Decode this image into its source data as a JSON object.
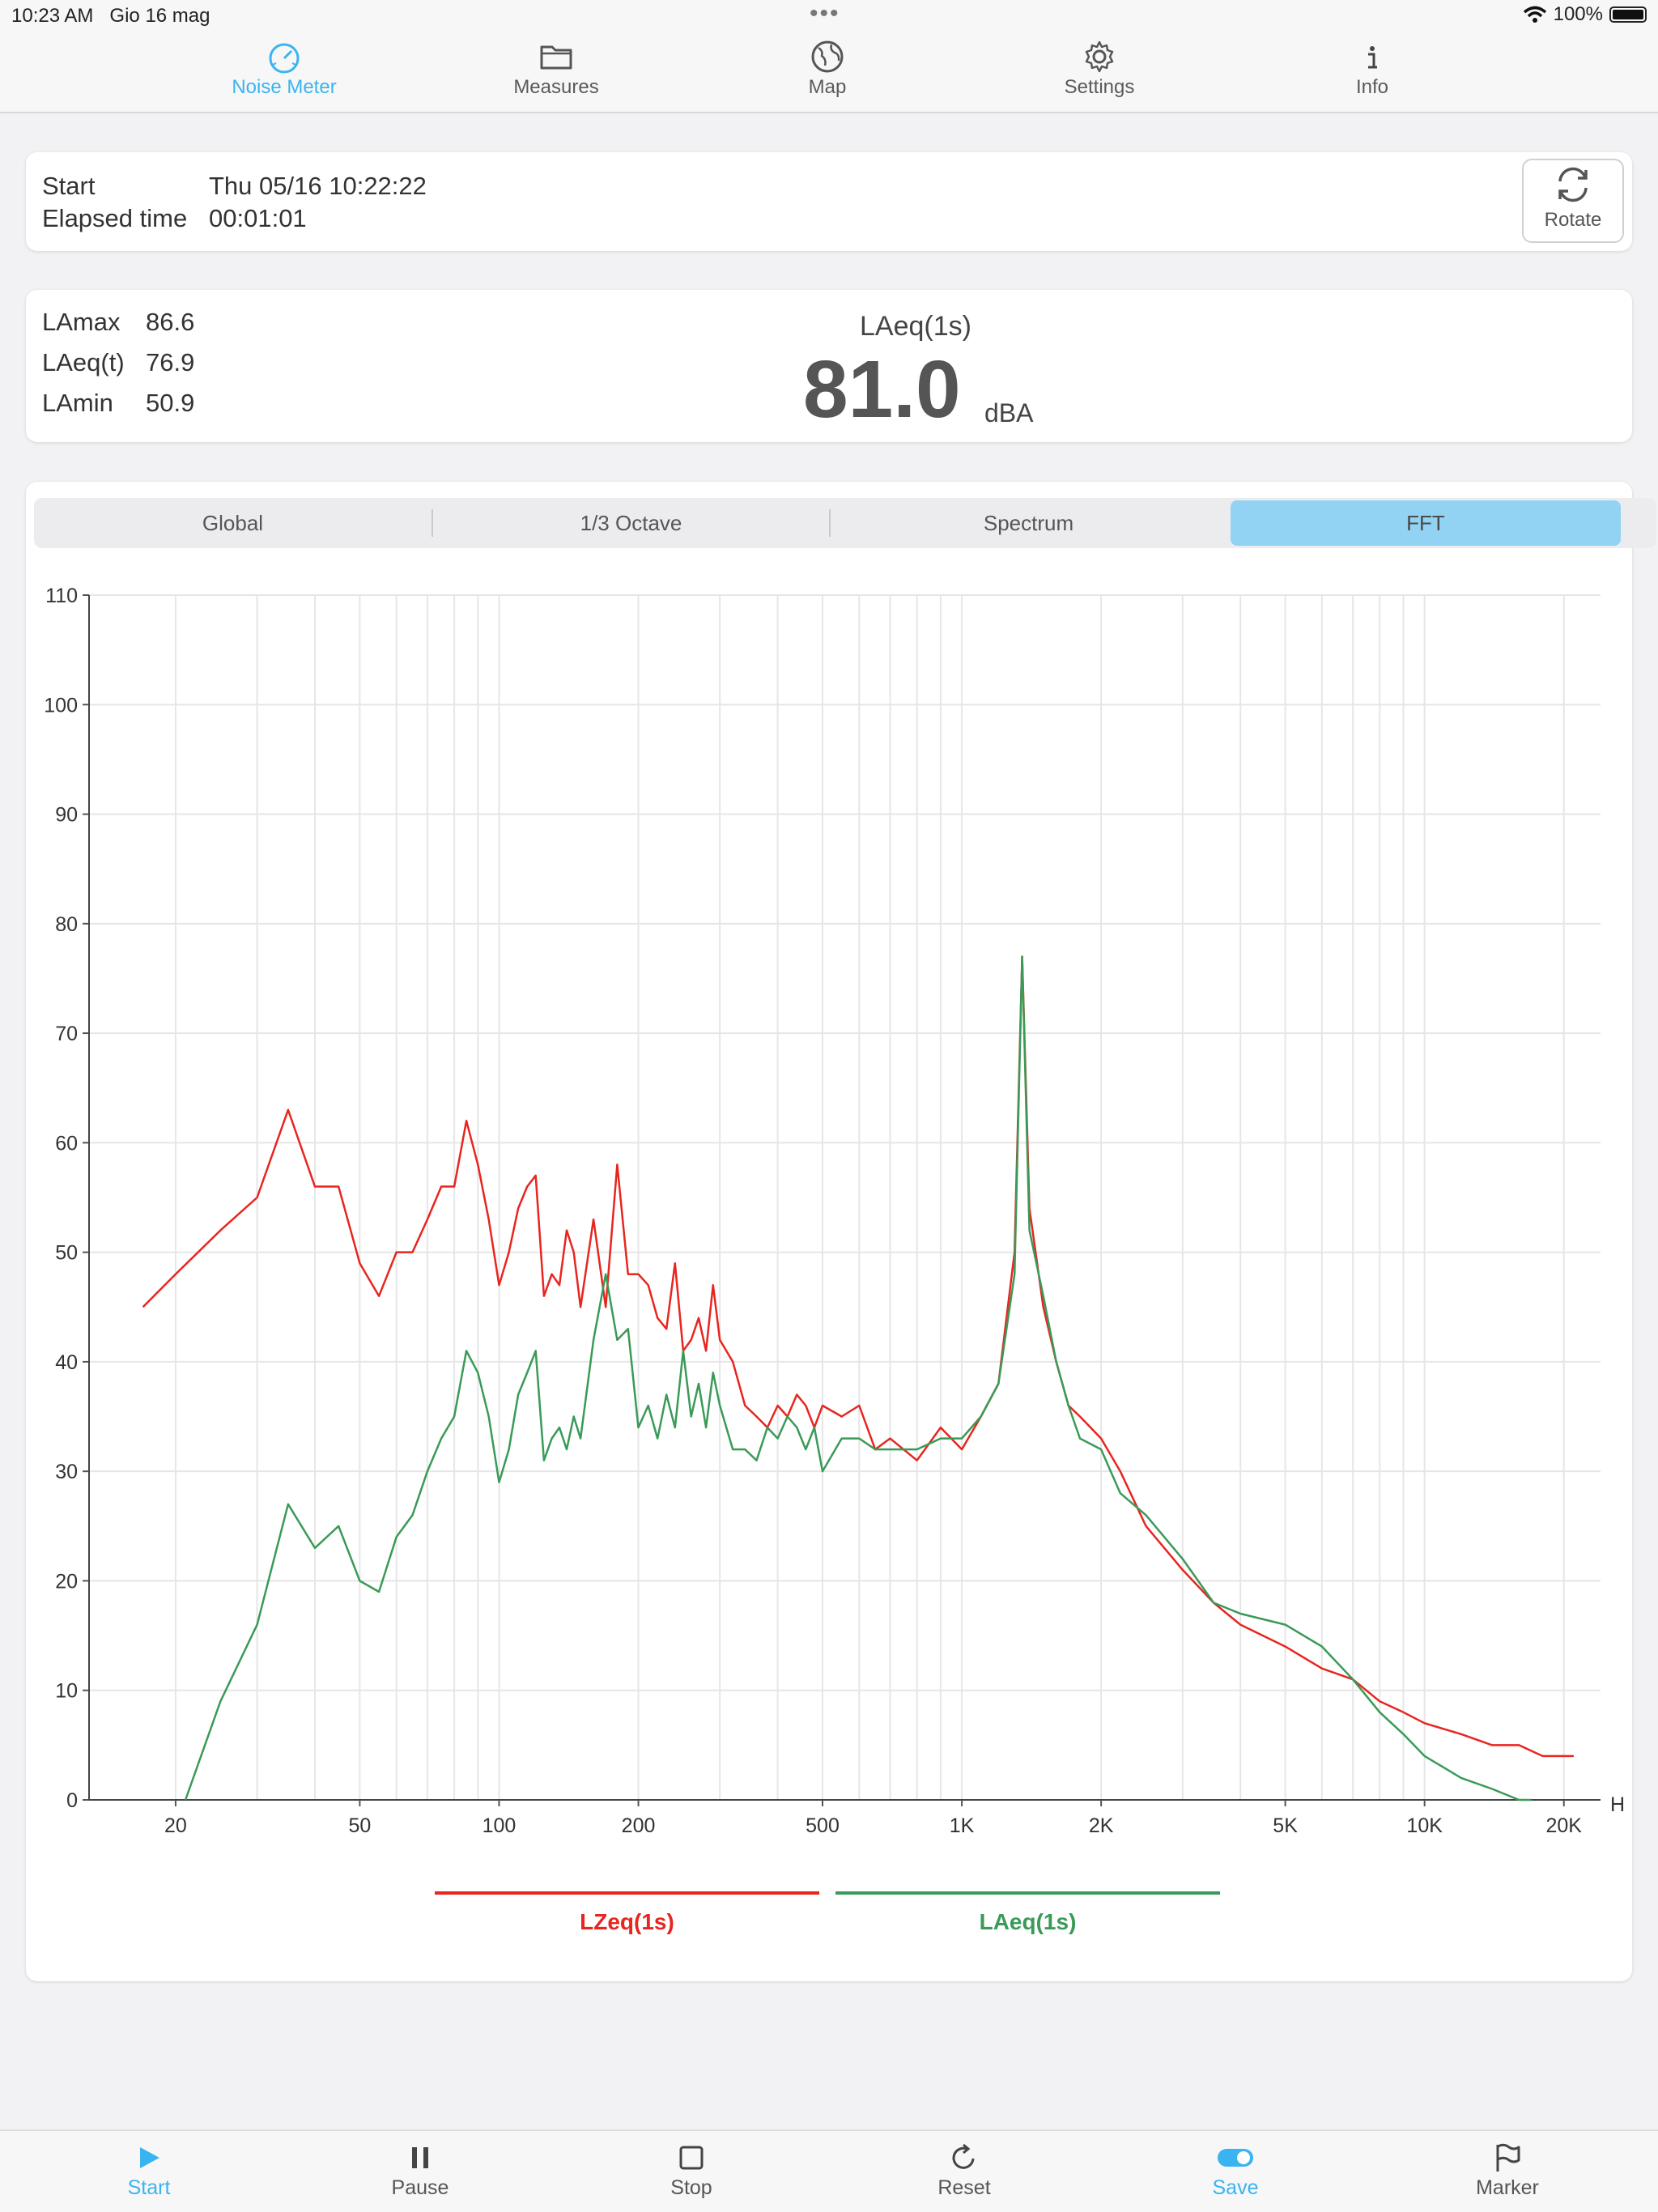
{
  "status_bar": {
    "time": "10:23 AM",
    "date": "Gio 16 mag",
    "battery": "100%"
  },
  "tabs": [
    {
      "label": "Noise Meter",
      "icon": "speedometer-icon",
      "active": true
    },
    {
      "label": "Measures",
      "icon": "folder-icon"
    },
    {
      "label": "Map",
      "icon": "globe-icon"
    },
    {
      "label": "Settings",
      "icon": "gear-icon"
    },
    {
      "label": "Info",
      "icon": "info-icon"
    }
  ],
  "session": {
    "start_label": "Start",
    "start_value": "Thu 05/16 10:22:22",
    "elapsed_label": "Elapsed time",
    "elapsed_value": "00:01:01",
    "rotate_label": "Rotate"
  },
  "levels": {
    "lamax_label": "LAmax",
    "lamax_value": "86.6",
    "laeqt_label": "LAeq(t)",
    "laeqt_value": "76.9",
    "lamin_label": "LAmin",
    "lamin_value": "50.9",
    "main_label": "LAeq(1s)",
    "main_value": "81.0",
    "main_unit": "dBA"
  },
  "segments": [
    "Global",
    "1/3 Octave",
    "Spectrum",
    "FFT"
  ],
  "active_segment": "FFT",
  "legend": {
    "red": "LZeq(1s)",
    "green": "LAeq(1s)"
  },
  "colors": {
    "accent": "#39b4f0",
    "lzeq": "#e8251f",
    "laeq": "#3a9a57",
    "segment_active": "#92d3f4"
  },
  "toolbar": [
    {
      "label": "Start",
      "icon": "play-icon",
      "active": true
    },
    {
      "label": "Pause",
      "icon": "pause-icon"
    },
    {
      "label": "Stop",
      "icon": "stop-icon"
    },
    {
      "label": "Reset",
      "icon": "reset-icon"
    },
    {
      "label": "Save",
      "icon": "toggle-icon",
      "active": true
    },
    {
      "label": "Marker",
      "icon": "flag-icon"
    }
  ],
  "chart_data": {
    "type": "line",
    "xscale": "log",
    "xlim": [
      13,
      24000
    ],
    "ylim": [
      0,
      110
    ],
    "yticks": [
      0,
      10,
      20,
      30,
      40,
      50,
      60,
      70,
      80,
      90,
      100,
      110
    ],
    "xticks": [
      {
        "v": 20,
        "label": "20"
      },
      {
        "v": 50,
        "label": "50"
      },
      {
        "v": 100,
        "label": "100"
      },
      {
        "v": 200,
        "label": "200"
      },
      {
        "v": 500,
        "label": "500"
      },
      {
        "v": 1000,
        "label": "1K"
      },
      {
        "v": 2000,
        "label": "2K"
      },
      {
        "v": 5000,
        "label": "5K"
      },
      {
        "v": 10000,
        "label": "10K"
      },
      {
        "v": 20000,
        "label": "20K"
      }
    ],
    "xunit_label": "H",
    "grid": true,
    "series": [
      {
        "name": "LZeq(1s)",
        "color": "#e8251f",
        "x": [
          17,
          20,
          25,
          30,
          35,
          40,
          45,
          50,
          55,
          60,
          65,
          70,
          75,
          80,
          85,
          90,
          95,
          100,
          105,
          110,
          115,
          120,
          125,
          130,
          135,
          140,
          145,
          150,
          160,
          170,
          180,
          190,
          200,
          210,
          220,
          230,
          240,
          250,
          260,
          270,
          280,
          290,
          300,
          320,
          340,
          360,
          380,
          400,
          420,
          440,
          460,
          480,
          500,
          550,
          600,
          650,
          700,
          800,
          900,
          1000,
          1100,
          1200,
          1300,
          1350,
          1400,
          1500,
          1600,
          1700,
          1800,
          2000,
          2200,
          2500,
          3000,
          3500,
          4000,
          5000,
          6000,
          7000,
          8000,
          9000,
          10000,
          12000,
          14000,
          16000,
          18000,
          20000,
          21000
        ],
        "y": [
          45,
          48,
          52,
          55,
          63,
          56,
          56,
          49,
          46,
          50,
          50,
          53,
          56,
          56,
          62,
          58,
          53,
          47,
          50,
          54,
          56,
          57,
          46,
          48,
          47,
          52,
          50,
          45,
          53,
          45,
          58,
          48,
          48,
          47,
          44,
          43,
          49,
          41,
          42,
          44,
          41,
          47,
          42,
          40,
          36,
          35,
          34,
          36,
          35,
          37,
          36,
          34,
          36,
          35,
          36,
          32,
          33,
          31,
          34,
          32,
          35,
          38,
          50,
          77,
          54,
          45,
          40,
          36,
          35,
          33,
          30,
          25,
          21,
          18,
          16,
          14,
          12,
          11,
          9,
          8,
          7,
          6,
          5,
          5,
          4,
          4,
          4
        ]
      },
      {
        "name": "LAeq(1s)",
        "color": "#3a9a57",
        "x": [
          21,
          25,
          30,
          35,
          40,
          45,
          50,
          55,
          60,
          65,
          70,
          75,
          80,
          85,
          90,
          95,
          100,
          105,
          110,
          115,
          120,
          125,
          130,
          135,
          140,
          145,
          150,
          160,
          170,
          180,
          190,
          200,
          210,
          220,
          230,
          240,
          250,
          260,
          270,
          280,
          290,
          300,
          320,
          340,
          360,
          380,
          400,
          420,
          440,
          460,
          480,
          500,
          550,
          600,
          650,
          700,
          800,
          900,
          1000,
          1100,
          1200,
          1300,
          1350,
          1400,
          1500,
          1600,
          1700,
          1800,
          2000,
          2200,
          2500,
          3000,
          3500,
          4000,
          5000,
          6000,
          7000,
          8000,
          9000,
          10000,
          12000,
          14000,
          16000,
          17000
        ],
        "y": [
          0,
          9,
          16,
          27,
          23,
          25,
          20,
          19,
          24,
          26,
          30,
          33,
          35,
          41,
          39,
          35,
          29,
          32,
          37,
          39,
          41,
          31,
          33,
          34,
          32,
          35,
          33,
          42,
          48,
          42,
          43,
          34,
          36,
          33,
          37,
          34,
          41,
          35,
          38,
          34,
          39,
          36,
          32,
          32,
          31,
          34,
          33,
          35,
          34,
          32,
          34,
          30,
          33,
          33,
          32,
          32,
          32,
          33,
          33,
          35,
          38,
          48,
          77,
          52,
          46,
          40,
          36,
          33,
          32,
          28,
          26,
          22,
          18,
          17,
          16,
          14,
          11,
          8,
          6,
          4,
          2,
          1,
          0,
          0
        ]
      }
    ]
  }
}
